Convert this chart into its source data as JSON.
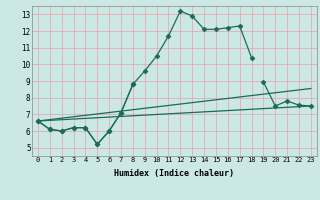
{
  "xlabel": "Humidex (Indice chaleur)",
  "bg_color": "#cce8e4",
  "grid_color": "#e8a0a8",
  "line_color": "#1a6b5a",
  "xlim": [
    -0.5,
    23.5
  ],
  "ylim": [
    4.5,
    13.5
  ],
  "xticks": [
    0,
    1,
    2,
    3,
    4,
    5,
    6,
    7,
    8,
    9,
    10,
    11,
    12,
    13,
    14,
    15,
    16,
    17,
    18,
    19,
    20,
    21,
    22,
    23
  ],
  "yticks": [
    5,
    6,
    7,
    8,
    9,
    10,
    11,
    12,
    13
  ],
  "line1_x": [
    0,
    1,
    2,
    3,
    4,
    5,
    6,
    7,
    8,
    9,
    10,
    11,
    12,
    13,
    14,
    15,
    16,
    17,
    18
  ],
  "line1_y": [
    6.6,
    6.1,
    6.0,
    6.2,
    6.2,
    5.2,
    6.0,
    7.1,
    8.8,
    9.6,
    10.5,
    11.7,
    13.2,
    12.9,
    12.1,
    12.1,
    12.2,
    12.3,
    10.4
  ],
  "line2_x": [
    0,
    1,
    2,
    3,
    4,
    5,
    6,
    7,
    8,
    19,
    20,
    21,
    22,
    23
  ],
  "line2_y": [
    6.6,
    6.1,
    6.0,
    6.2,
    6.2,
    5.2,
    6.0,
    7.1,
    8.8,
    8.95,
    7.5,
    7.8,
    7.55,
    7.5
  ],
  "line3_x": [
    0,
    23
  ],
  "line3_y": [
    6.6,
    8.55
  ],
  "line4_x": [
    0,
    23
  ],
  "line4_y": [
    6.6,
    7.5
  ]
}
